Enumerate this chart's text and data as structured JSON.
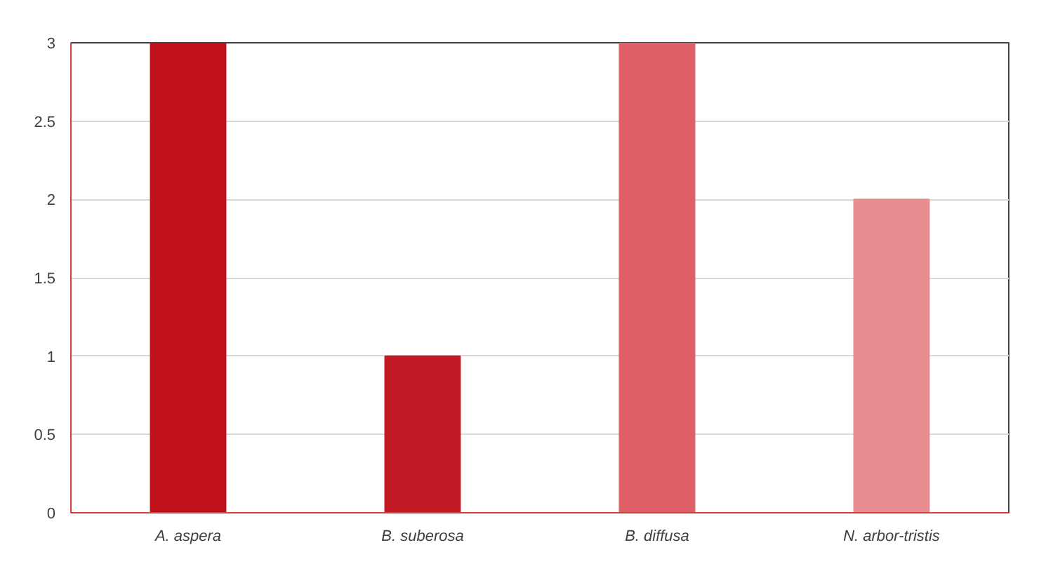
{
  "chart_data": {
    "type": "bar",
    "categories": [
      "A. aspera",
      "B. suberosa",
      "B. diffusa",
      "N. arbor-tristis"
    ],
    "values": [
      3,
      1,
      3,
      2
    ],
    "colors": [
      "#c0101c",
      "#c41a26",
      "#e06068",
      "#e88c90"
    ],
    "ylim": [
      0,
      3
    ],
    "yticks": [
      0,
      0.5,
      1,
      1.5,
      2,
      2.5,
      3
    ],
    "grid": "y"
  }
}
